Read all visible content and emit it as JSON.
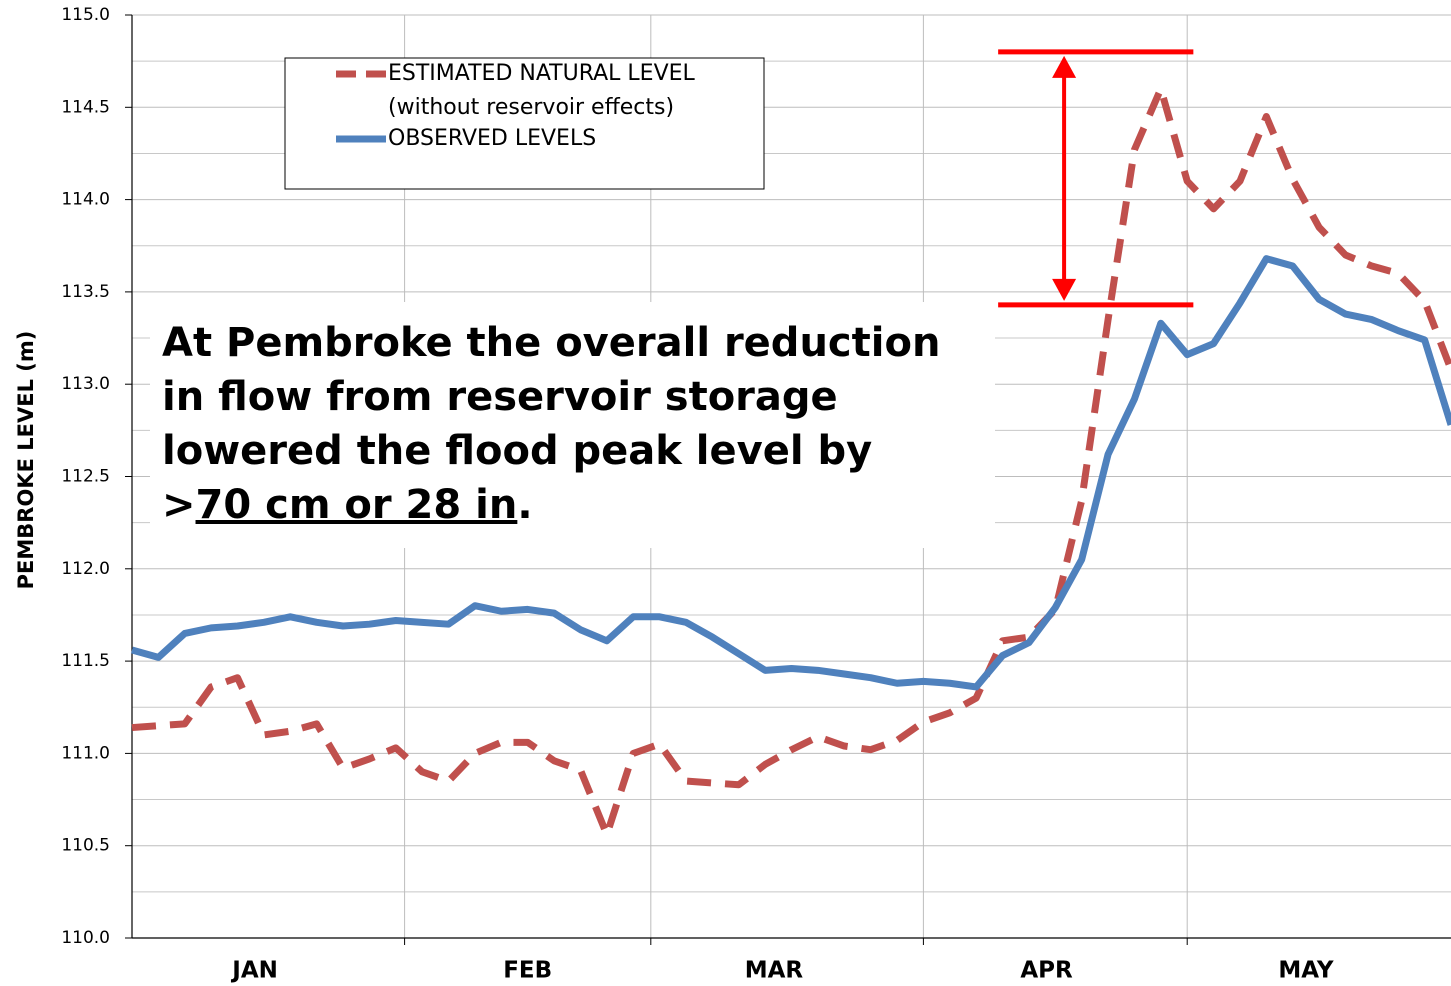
{
  "chart_data": {
    "type": "line",
    "y_label": "PEMBROKE LEVEL (m)",
    "x": [
      0,
      3,
      6,
      9,
      12,
      15,
      18,
      21,
      24,
      27,
      30,
      33,
      36,
      39,
      42,
      45,
      48,
      51,
      54,
      57,
      60,
      63,
      66,
      69,
      72,
      75,
      78,
      81,
      84,
      87,
      90,
      93,
      96,
      99,
      102,
      105,
      108,
      111,
      114,
      117,
      120,
      123,
      126,
      129,
      132,
      135,
      138,
      141,
      144,
      147,
      150
    ],
    "xlim": [
      0,
      150
    ],
    "xticks": [
      {
        "value": 14,
        "label": "JAN"
      },
      {
        "value": 45,
        "label": "FEB"
      },
      {
        "value": 73,
        "label": "MAR"
      },
      {
        "value": 104,
        "label": "APR"
      },
      {
        "value": 133.5,
        "label": "MAY"
      }
    ],
    "xgrid": [
      31,
      59,
      90,
      120
    ],
    "ylim": [
      110,
      115
    ],
    "yticks": [
      {
        "value": 110,
        "label": "110.0"
      },
      {
        "value": 110.5,
        "label": "110.5"
      },
      {
        "value": 111,
        "label": "111.0"
      },
      {
        "value": 111.5,
        "label": "111.5"
      },
      {
        "value": 112,
        "label": "112.0"
      },
      {
        "value": 112.5,
        "label": "112.5"
      },
      {
        "value": 113,
        "label": "113.0"
      },
      {
        "value": 113.5,
        "label": "113.5"
      },
      {
        "value": 114,
        "label": "114.0"
      },
      {
        "value": 114.5,
        "label": "114.5"
      },
      {
        "value": 115,
        "label": "115.0"
      }
    ],
    "yminorticks": [
      110.25,
      110.75,
      111.25,
      111.75,
      112.25,
      112.75,
      113.25,
      113.75,
      114.25,
      114.75
    ],
    "grid": true,
    "series": [
      {
        "name": "ESTIMATED NATURAL LEVEL",
        "note": "(without reservoir effects)",
        "color": "#c0504d",
        "dashed": true,
        "values": [
          111.14,
          111.15,
          111.16,
          111.36,
          111.41,
          111.1,
          111.12,
          111.16,
          110.92,
          110.97,
          111.03,
          110.9,
          110.85,
          111.0,
          111.06,
          111.06,
          110.96,
          110.91,
          110.56,
          111.0,
          111.05,
          110.85,
          110.84,
          110.83,
          110.94,
          111.02,
          111.09,
          111.04,
          111.02,
          111.07,
          111.17,
          111.22,
          111.3,
          111.61,
          111.63,
          111.78,
          112.37,
          113.35,
          114.27,
          114.6,
          114.1,
          113.95,
          114.1,
          114.45,
          114.11,
          113.85,
          113.7,
          113.64,
          113.6,
          113.45,
          113.08
        ]
      },
      {
        "name": "OBSERVED LEVELS",
        "color": "#4f81bd",
        "dashed": false,
        "values": [
          111.56,
          111.52,
          111.65,
          111.68,
          111.69,
          111.71,
          111.74,
          111.71,
          111.69,
          111.7,
          111.72,
          111.71,
          111.7,
          111.8,
          111.77,
          111.78,
          111.76,
          111.67,
          111.61,
          111.74,
          111.74,
          111.71,
          111.63,
          111.54,
          111.45,
          111.46,
          111.45,
          111.43,
          111.41,
          111.38,
          111.39,
          111.38,
          111.36,
          111.53,
          111.6,
          111.79,
          112.05,
          112.62,
          112.92,
          113.33,
          113.16,
          113.22,
          113.44,
          113.68,
          113.64,
          113.46,
          113.38,
          113.35,
          113.29,
          113.24,
          112.78
        ]
      }
    ],
    "bracket": {
      "top": 114.8,
      "bottom": 113.43,
      "from": 98.5,
      "to": 120.7,
      "arrow_x": 106,
      "color": "#ff0000"
    },
    "annotation": {
      "lines": [
        "At Pembroke the overall reduction",
        "in flow from reservoir storage",
        "lowered the flood peak level by"
      ],
      "last_line": [
        ">",
        "70 cm or 28 in",
        "."
      ]
    }
  }
}
